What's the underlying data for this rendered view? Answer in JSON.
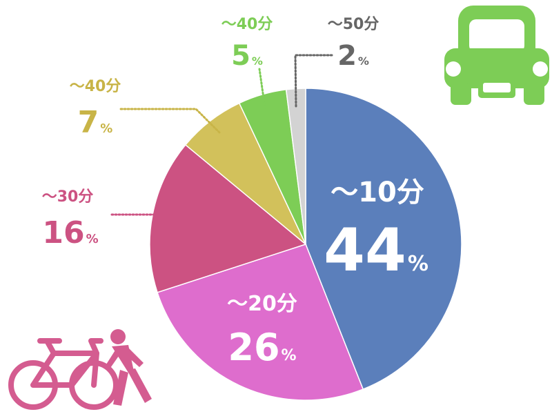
{
  "chart_data": {
    "type": "pie",
    "title": "",
    "categories": [
      "～10分",
      "～20分",
      "～30分",
      "～40分",
      "～40分",
      "～50分"
    ],
    "values": [
      44,
      26,
      16,
      7,
      5,
      2
    ],
    "value_unit": "%",
    "colors": [
      "#5b7fbb",
      "#de6dcd",
      "#cc5282",
      "#d2c15b",
      "#7dcd56",
      "#d3d3d3"
    ],
    "start_angle_deg": 0,
    "direction": "clockwise",
    "labels_outside": [
      false,
      false,
      true,
      true,
      true,
      true
    ],
    "legend": "none"
  },
  "icons": {
    "car": {
      "name": "car-icon",
      "color": "#7dcd56"
    },
    "bicycle": {
      "name": "bicycle-icon",
      "color": "#d45c90"
    },
    "pedestrian": {
      "name": "walking-person-icon",
      "color": "#d45c90"
    }
  }
}
